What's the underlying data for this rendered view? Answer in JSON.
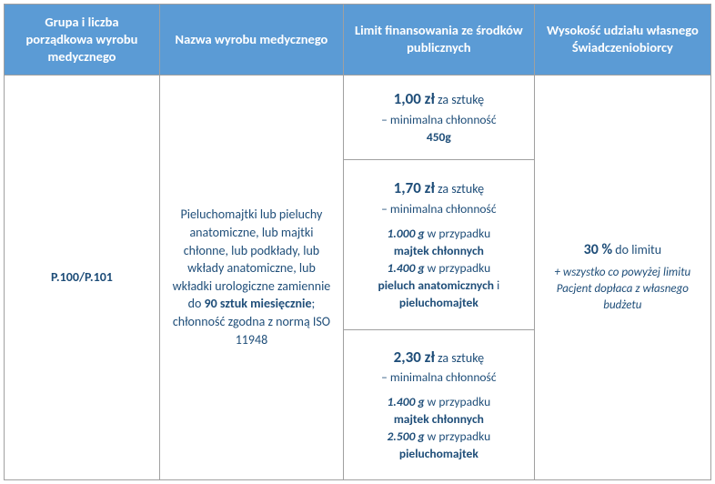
{
  "headers": {
    "col1": "Grupa i liczba porządkowa wyrobu medycznego",
    "col2": "Nazwa wyrobu medycznego",
    "col3": "Limit finansowania ze środków publicznych",
    "col4": "Wysokość udziału własnego Świadczeniobiorcy"
  },
  "row": {
    "code": "P.100/P.101",
    "description": {
      "text1": "Pieluchomajtki lub pieluchy anatomiczne, lub majtki chłonne, lub podkłady, lub wkłady anatomiczne, lub wkładki urologiczne zamiennie do ",
      "bold1": "90 sztuk miesięcznie",
      "text2": "; chłonność zgodna z normą ISO 11948"
    },
    "limits": [
      {
        "price": "1,00 zł",
        "unit": " za sztukę",
        "subline": "– minimalna chłonność",
        "weight": "450g"
      },
      {
        "price": "1,70 zł",
        "unit": " za sztukę",
        "subline": "– minimalna chłonność",
        "d1_weight": "1.000 g",
        "d1_text": " w przypadku ",
        "d1_bold": "majtek chłonnych",
        "d2_weight": "1.400 g",
        "d2_text": " w przypadku ",
        "d2_bold": "pieluch anatomicznych",
        "d2_and": " i ",
        "d2_bold2": "pieluchomajtek"
      },
      {
        "price": "2,30 zł",
        "unit": " za sztukę",
        "subline": "– minimalna chłonność",
        "d1_weight": "1.400 g",
        "d1_text": " w przypadku ",
        "d1_bold": "majtek chłonnych",
        "d2_weight": "2.500 g",
        "d2_text": " w przypadku ",
        "d2_bold": "pieluchomajtek"
      }
    ],
    "share": {
      "percent": "30 %",
      "percent_sub": " do limitu",
      "note": "+ wszystko co powyżej limitu Pacjent dopłaca z własnego budżetu"
    }
  },
  "colors": {
    "header_bg": "#5b9bd5",
    "header_text": "#ffffff",
    "body_text": "#1f4e79",
    "border": "#a0a0a0",
    "background": "#ffffff"
  }
}
